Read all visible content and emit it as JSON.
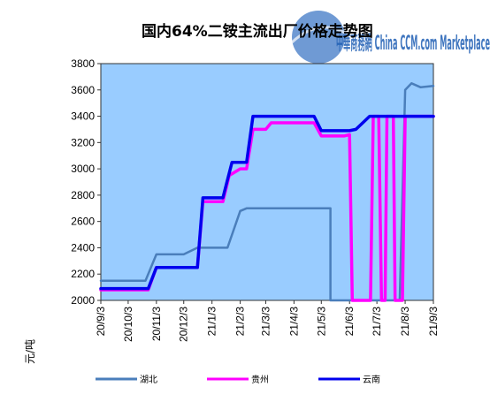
{
  "chart_data": {
    "type": "line",
    "title": "国内64%二铵主流出厂价格走势图",
    "ylabel": "元/吨",
    "xlabel": "",
    "ylim": [
      2000,
      3800
    ],
    "yticks": [
      2000,
      2200,
      2400,
      2600,
      2800,
      3000,
      3200,
      3400,
      3600,
      3800
    ],
    "xtick_labels": [
      "20/9/3",
      "20/10/3",
      "20/11/3",
      "20/12/3",
      "21/1/3",
      "21/2/3",
      "21/3/3",
      "21/4/3",
      "21/5/3",
      "21/6/3",
      "21/7/3",
      "21/8/3",
      "21/9/3"
    ],
    "grid": false,
    "legend_position": "bottom",
    "plot_background": "#99ccff",
    "watermark": "中華商務網 China CCM.com Marketplace",
    "series": [
      {
        "name": "湖北",
        "color": "#4a7ebb",
        "points": [
          [
            "20/9/3",
            2150
          ],
          [
            "20/10/3",
            2150
          ],
          [
            "20/10/22",
            2150
          ],
          [
            "20/11/3",
            2350
          ],
          [
            "20/12/3",
            2350
          ],
          [
            "20/12/18",
            2400
          ],
          [
            "21/1/3",
            2400
          ],
          [
            "21/1/20",
            2400
          ],
          [
            "21/2/3",
            2680
          ],
          [
            "21/2/10",
            2700
          ],
          [
            "21/3/3",
            2700
          ],
          [
            "21/4/3",
            2700
          ],
          [
            "21/5/3",
            2700
          ],
          [
            "21/5/13",
            2700
          ],
          [
            "21/5/13",
            2000
          ],
          [
            "21/7/28",
            2000
          ],
          [
            "21/8/3",
            3600
          ],
          [
            "21/8/10",
            3650
          ],
          [
            "21/8/20",
            3620
          ],
          [
            "21/9/3",
            3630
          ]
        ]
      },
      {
        "name": "贵州",
        "color": "#ff00ff",
        "points": [
          [
            "20/9/3",
            2080
          ],
          [
            "20/10/3",
            2080
          ],
          [
            "20/10/25",
            2080
          ],
          [
            "20/11/3",
            2250
          ],
          [
            "20/12/3",
            2250
          ],
          [
            "20/12/18",
            2250
          ],
          [
            "20/12/24",
            2750
          ],
          [
            "21/1/3",
            2750
          ],
          [
            "21/1/15",
            2750
          ],
          [
            "21/1/22",
            2950
          ],
          [
            "21/2/3",
            3000
          ],
          [
            "21/2/10",
            3000
          ],
          [
            "21/2/17",
            3300
          ],
          [
            "21/3/3",
            3300
          ],
          [
            "21/3/9",
            3350
          ],
          [
            "21/4/3",
            3350
          ],
          [
            "21/4/25",
            3350
          ],
          [
            "21/5/3",
            3250
          ],
          [
            "21/5/28",
            3250
          ],
          [
            "21/6/3",
            3260
          ],
          [
            "21/6/6",
            2000
          ],
          [
            "21/6/26",
            2000
          ],
          [
            "21/6/29",
            3400
          ],
          [
            "21/7/5",
            3400
          ],
          [
            "21/7/8",
            2000
          ],
          [
            "21/7/12",
            2000
          ],
          [
            "21/7/14",
            3400
          ],
          [
            "21/7/21",
            3400
          ],
          [
            "21/7/23",
            2000
          ],
          [
            "21/7/31",
            2000
          ],
          [
            "21/8/3",
            3400
          ],
          [
            "21/9/3",
            3400
          ]
        ]
      },
      {
        "name": "云南",
        "color": "#0000ee",
        "points": [
          [
            "20/9/3",
            2090
          ],
          [
            "20/10/3",
            2090
          ],
          [
            "20/10/25",
            2090
          ],
          [
            "20/11/3",
            2250
          ],
          [
            "20/12/3",
            2250
          ],
          [
            "20/12/18",
            2250
          ],
          [
            "20/12/24",
            2780
          ],
          [
            "21/1/3",
            2780
          ],
          [
            "21/1/15",
            2780
          ],
          [
            "21/1/25",
            3050
          ],
          [
            "21/2/3",
            3050
          ],
          [
            "21/2/10",
            3050
          ],
          [
            "21/2/17",
            3400
          ],
          [
            "21/3/3",
            3400
          ],
          [
            "21/4/3",
            3400
          ],
          [
            "21/4/25",
            3400
          ],
          [
            "21/5/3",
            3290
          ],
          [
            "21/6/3",
            3290
          ],
          [
            "21/6/10",
            3300
          ],
          [
            "21/6/25",
            3400
          ],
          [
            "21/7/3",
            3400
          ],
          [
            "21/8/3",
            3400
          ],
          [
            "21/9/3",
            3400
          ]
        ]
      }
    ]
  }
}
